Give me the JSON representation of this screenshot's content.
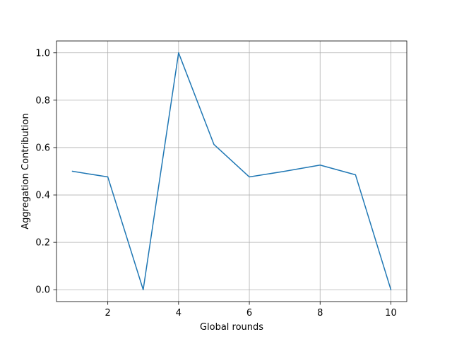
{
  "chart_data": {
    "type": "line",
    "title": "",
    "xlabel": "Global rounds",
    "ylabel": "Aggregation Contribution",
    "xlim": [
      0.55,
      10.45
    ],
    "ylim": [
      -0.05,
      1.05
    ],
    "xticks": [
      2,
      4,
      6,
      8,
      10
    ],
    "yticks": [
      0.0,
      0.2,
      0.4,
      0.6,
      0.8,
      1.0
    ],
    "xtick_labels": [
      "2",
      "4",
      "6",
      "8",
      "10"
    ],
    "ytick_labels": [
      "0.0",
      "0.2",
      "0.4",
      "0.6",
      "0.8",
      "1.0"
    ],
    "grid": true,
    "series": [
      {
        "color": "#1f77b4",
        "x": [
          1,
          2,
          3,
          4,
          5,
          6,
          7,
          8,
          9,
          10
        ],
        "y": [
          0.5,
          0.476,
          0.0,
          1.0,
          0.613,
          0.476,
          0.5,
          0.526,
          0.485,
          0.0
        ]
      }
    ]
  }
}
